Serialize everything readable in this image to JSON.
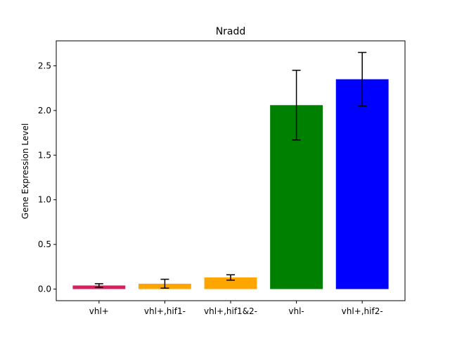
{
  "chart_data": {
    "type": "bar",
    "title": "Nradd",
    "xlabel": "",
    "ylabel": "Gene Expression Level",
    "categories": [
      "vhl+",
      "vhl+,hif1-",
      "vhl+,hif1&2-",
      "vhl-",
      "vhl+,hif2-"
    ],
    "values": [
      0.04,
      0.06,
      0.13,
      2.06,
      2.35
    ],
    "error_low": [
      0.02,
      0.01,
      0.1,
      1.67,
      2.05
    ],
    "error_high": [
      0.06,
      0.11,
      0.16,
      2.45,
      2.65
    ],
    "colors": [
      "#d62060",
      "#ffa500",
      "#ffa500",
      "#008000",
      "#0000ff"
    ],
    "ylim": [
      -0.13,
      2.78
    ],
    "yticks": [
      0.0,
      0.5,
      1.0,
      1.5,
      2.0,
      2.5
    ],
    "ytick_labels": [
      "0.0",
      "0.5",
      "1.0",
      "1.5",
      "2.0",
      "2.5"
    ],
    "grid": false,
    "error_bar_color": "#000000"
  }
}
